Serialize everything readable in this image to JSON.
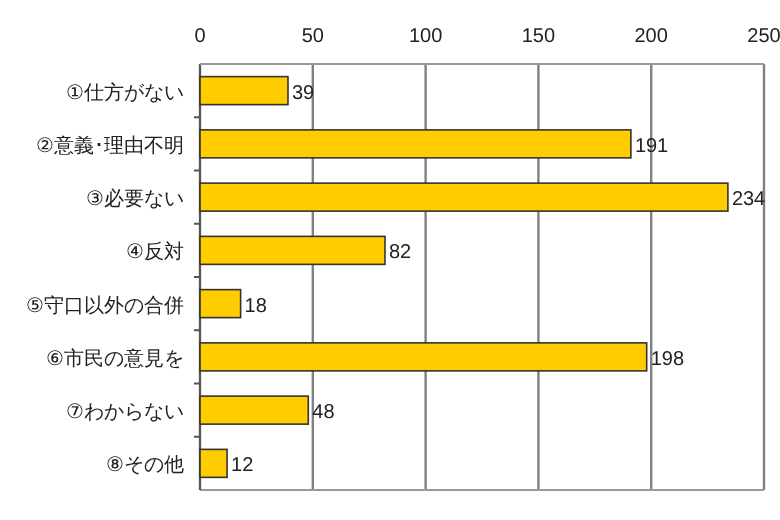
{
  "chart_data": {
    "type": "bar",
    "orientation": "horizontal",
    "categories": [
      "①仕方がない",
      "②意義･理由不明",
      "③必要ない",
      "④反対",
      "⑤守口以外の合併",
      "⑥市民の意見を",
      "⑦わからない",
      "⑧その他"
    ],
    "values": [
      39,
      191,
      234,
      82,
      18,
      198,
      48,
      12
    ],
    "color": "#ffcc00",
    "xlim": [
      0,
      250
    ],
    "xticks": [
      0,
      50,
      100,
      150,
      200,
      250
    ],
    "grid": "x",
    "data_labels": true
  }
}
